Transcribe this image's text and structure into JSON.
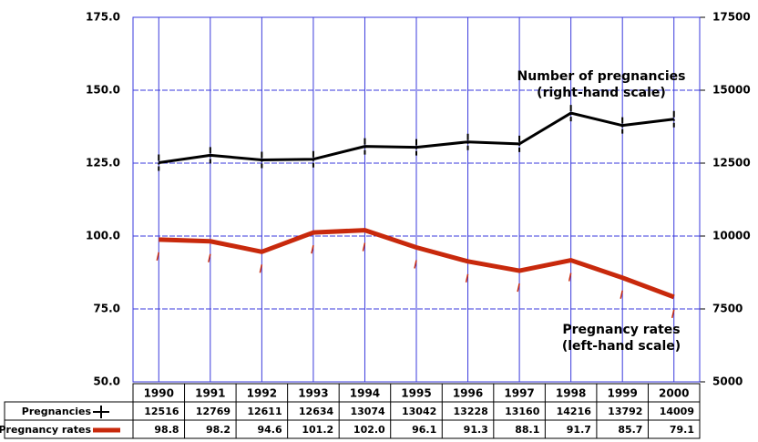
{
  "chart_data": {
    "type": "line",
    "categories": [
      "1990",
      "1991",
      "1992",
      "1993",
      "1994",
      "1995",
      "1996",
      "1997",
      "1998",
      "1999",
      "2000"
    ],
    "series": [
      {
        "name": "Pregnancies",
        "color": "#000000",
        "axis": "y2",
        "values": [
          12516,
          12769,
          12611,
          12634,
          13074,
          13042,
          13228,
          13160,
          14216,
          13792,
          14009
        ]
      },
      {
        "name": "Pregnancy rates",
        "color": "#c8290c",
        "axis": "y",
        "values": [
          98.8,
          98.2,
          94.6,
          101.2,
          102.0,
          96.1,
          91.3,
          88.1,
          91.7,
          85.7,
          79.1
        ],
        "value_labels": [
          "98.8",
          "98.2",
          "94.6",
          "101.2",
          "102.0",
          "96.1",
          "91.3",
          "88.1",
          "91.7",
          "85.7",
          "79.1"
        ]
      }
    ],
    "ylim": [
      50,
      175
    ],
    "yticks": [
      {
        "value": 50,
        "label": "50.0"
      },
      {
        "value": 75,
        "label": "75.0"
      },
      {
        "value": 100,
        "label": "100.0"
      },
      {
        "value": 125,
        "label": "125.0"
      },
      {
        "value": 150,
        "label": "150.0"
      },
      {
        "value": 175,
        "label": "175.0"
      }
    ],
    "y2lim": [
      5000,
      17500
    ],
    "y2ticks": [
      5000,
      7500,
      10000,
      12500,
      15000,
      17500
    ],
    "grid": true,
    "annotations": [
      {
        "lines": [
          "Number of pregnancies",
          "(right-hand scale)"
        ]
      },
      {
        "lines": [
          "Pregnancy rates",
          "(left-hand scale)"
        ]
      }
    ]
  }
}
